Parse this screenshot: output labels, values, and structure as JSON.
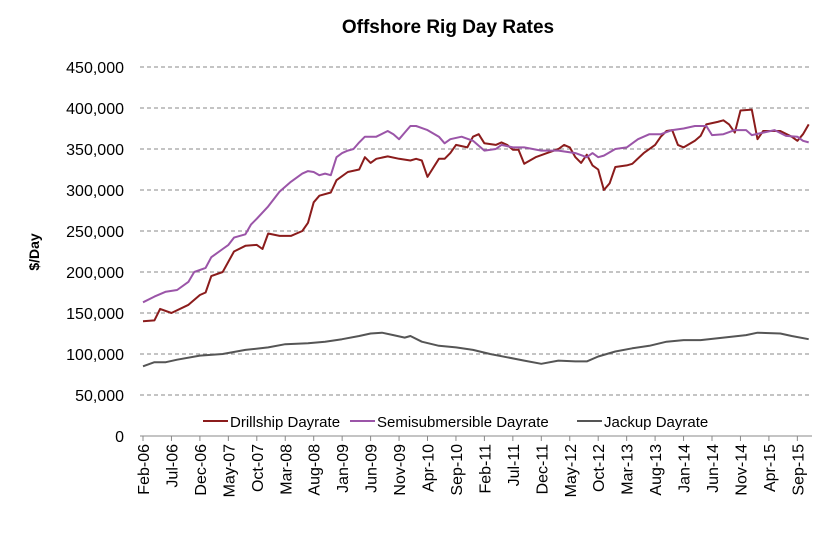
{
  "chart_data": {
    "type": "line",
    "title": "Offshore Rig Day Rates",
    "xlabel": "",
    "ylabel": "$/Day",
    "ylim": [
      0,
      450000
    ],
    "yticks": [
      0,
      50000,
      100000,
      150000,
      200000,
      250000,
      300000,
      350000,
      400000,
      450000
    ],
    "ytick_labels": [
      "0",
      "50,000",
      "100,000",
      "150,000",
      "200,000",
      "250,000",
      "300,000",
      "350,000",
      "400,000",
      "450,000"
    ],
    "x_range": [
      "Feb-06",
      "Nov-15"
    ],
    "xtick_labels": [
      "Feb-06",
      "Jul-06",
      "Dec-06",
      "May-07",
      "Oct-07",
      "Mar-08",
      "Aug-08",
      "Jan-09",
      "Jun-09",
      "Nov-09",
      "Apr-10",
      "Sep-10",
      "Feb-11",
      "Jul-11",
      "Dec-11",
      "May-12",
      "Oct-12",
      "Mar-13",
      "Aug-13",
      "Jan-14",
      "Jun-14",
      "Nov-14",
      "Apr-15",
      "Sep-15"
    ],
    "grid": "horizontal dashed",
    "legend_position": "bottom-inside",
    "series": [
      {
        "name": "Drillship Dayrate",
        "color": "#8b1c1c",
        "points": [
          [
            "Feb-06",
            140000
          ],
          [
            "Apr-06",
            141000
          ],
          [
            "May-06",
            155000
          ],
          [
            "Jul-06",
            150000
          ],
          [
            "Oct-06",
            160000
          ],
          [
            "Dec-06",
            172000
          ],
          [
            "Jan-07",
            175000
          ],
          [
            "Feb-07",
            195000
          ],
          [
            "Apr-07",
            200000
          ],
          [
            "Jun-07",
            225000
          ],
          [
            "Aug-07",
            232000
          ],
          [
            "Oct-07",
            233000
          ],
          [
            "Nov-07",
            228000
          ],
          [
            "Dec-07",
            247000
          ],
          [
            "Feb-08",
            244000
          ],
          [
            "Apr-08",
            244000
          ],
          [
            "Jun-08",
            250000
          ],
          [
            "Jul-08",
            260000
          ],
          [
            "Aug-08",
            285000
          ],
          [
            "Sep-08",
            293000
          ],
          [
            "Nov-08",
            297000
          ],
          [
            "Dec-08",
            312000
          ],
          [
            "Feb-09",
            322000
          ],
          [
            "Apr-09",
            325000
          ],
          [
            "May-09",
            340000
          ],
          [
            "Jun-09",
            333000
          ],
          [
            "Jul-09",
            338000
          ],
          [
            "Sep-09",
            341000
          ],
          [
            "Nov-09",
            338000
          ],
          [
            "Jan-10",
            336000
          ],
          [
            "Feb-10",
            338000
          ],
          [
            "Mar-10",
            336000
          ],
          [
            "Apr-10",
            316000
          ],
          [
            "Jun-10",
            338000
          ],
          [
            "Jul-10",
            338000
          ],
          [
            "Aug-10",
            345000
          ],
          [
            "Sep-10",
            355000
          ],
          [
            "Nov-10",
            352000
          ],
          [
            "Dec-10",
            365000
          ],
          [
            "Jan-11",
            368000
          ],
          [
            "Feb-11",
            357000
          ],
          [
            "Apr-11",
            355000
          ],
          [
            "May-11",
            358000
          ],
          [
            "Jun-11",
            355000
          ],
          [
            "Jul-11",
            349000
          ],
          [
            "Aug-11",
            349000
          ],
          [
            "Sep-11",
            332000
          ],
          [
            "Nov-11",
            340000
          ],
          [
            "Jan-12",
            345000
          ],
          [
            "Mar-12",
            350000
          ],
          [
            "Apr-12",
            355000
          ],
          [
            "May-12",
            352000
          ],
          [
            "Jun-12",
            340000
          ],
          [
            "Jul-12",
            333000
          ],
          [
            "Aug-12",
            343000
          ],
          [
            "Sep-12",
            330000
          ],
          [
            "Oct-12",
            325000
          ],
          [
            "Nov-12",
            300000
          ],
          [
            "Dec-12",
            308000
          ],
          [
            "Jan-13",
            328000
          ],
          [
            "Mar-13",
            330000
          ],
          [
            "Apr-13",
            332000
          ],
          [
            "Jun-13",
            345000
          ],
          [
            "Aug-13",
            355000
          ],
          [
            "Sep-13",
            365000
          ],
          [
            "Oct-13",
            372000
          ],
          [
            "Nov-13",
            373000
          ],
          [
            "Dec-13",
            355000
          ],
          [
            "Jan-14",
            352000
          ],
          [
            "Mar-14",
            360000
          ],
          [
            "Apr-14",
            366000
          ],
          [
            "May-14",
            380000
          ],
          [
            "Jul-14",
            383000
          ],
          [
            "Aug-14",
            385000
          ],
          [
            "Sep-14",
            380000
          ],
          [
            "Oct-14",
            370000
          ],
          [
            "Nov-14",
            397000
          ],
          [
            "Jan-15",
            398000
          ],
          [
            "Feb-15",
            362000
          ],
          [
            "Mar-15",
            372000
          ],
          [
            "Jun-15",
            372000
          ],
          [
            "Aug-15",
            365000
          ],
          [
            "Sep-15",
            360000
          ],
          [
            "Oct-15",
            368000
          ],
          [
            "Nov-15",
            380000
          ]
        ]
      },
      {
        "name": "Semisubmersible Dayrate",
        "color": "#9b55a8",
        "points": [
          [
            "Feb-06",
            163000
          ],
          [
            "Apr-06",
            170000
          ],
          [
            "Jun-06",
            176000
          ],
          [
            "Aug-06",
            178000
          ],
          [
            "Oct-06",
            188000
          ],
          [
            "Nov-06",
            200000
          ],
          [
            "Jan-07",
            205000
          ],
          [
            "Feb-07",
            218000
          ],
          [
            "Apr-07",
            228000
          ],
          [
            "May-07",
            233000
          ],
          [
            "Jun-07",
            242000
          ],
          [
            "Aug-07",
            246000
          ],
          [
            "Sep-07",
            258000
          ],
          [
            "Oct-07",
            265000
          ],
          [
            "Dec-07",
            280000
          ],
          [
            "Feb-08",
            298000
          ],
          [
            "Apr-08",
            310000
          ],
          [
            "Jun-08",
            320000
          ],
          [
            "Jul-08",
            323000
          ],
          [
            "Aug-08",
            322000
          ],
          [
            "Sep-08",
            318000
          ],
          [
            "Oct-08",
            320000
          ],
          [
            "Nov-08",
            318000
          ],
          [
            "Dec-08",
            340000
          ],
          [
            "Jan-09",
            345000
          ],
          [
            "Feb-09",
            348000
          ],
          [
            "Mar-09",
            350000
          ],
          [
            "Apr-09",
            358000
          ],
          [
            "May-09",
            365000
          ],
          [
            "Jul-09",
            365000
          ],
          [
            "Sep-09",
            372000
          ],
          [
            "Oct-09",
            368000
          ],
          [
            "Nov-09",
            362000
          ],
          [
            "Dec-09",
            370000
          ],
          [
            "Jan-10",
            378000
          ],
          [
            "Feb-10",
            378000
          ],
          [
            "Apr-10",
            373000
          ],
          [
            "Jun-10",
            365000
          ],
          [
            "Jul-10",
            357000
          ],
          [
            "Aug-10",
            362000
          ],
          [
            "Oct-10",
            365000
          ],
          [
            "Dec-10",
            360000
          ],
          [
            "Feb-11",
            348000
          ],
          [
            "Apr-11",
            350000
          ],
          [
            "May-11",
            355000
          ],
          [
            "Jul-11",
            352000
          ],
          [
            "Sep-11",
            352000
          ],
          [
            "Dec-11",
            348000
          ],
          [
            "Mar-12",
            348000
          ],
          [
            "Jun-12",
            345000
          ],
          [
            "Aug-12",
            340000
          ],
          [
            "Sep-12",
            345000
          ],
          [
            "Oct-12",
            340000
          ],
          [
            "Nov-12",
            342000
          ],
          [
            "Jan-13",
            350000
          ],
          [
            "Mar-13",
            352000
          ],
          [
            "May-13",
            362000
          ],
          [
            "Jul-13",
            368000
          ],
          [
            "Sep-13",
            368000
          ],
          [
            "Nov-13",
            373000
          ],
          [
            "Jan-14",
            375000
          ],
          [
            "Mar-14",
            378000
          ],
          [
            "May-14",
            378000
          ],
          [
            "Jun-14",
            367000
          ],
          [
            "Aug-14",
            368000
          ],
          [
            "Oct-14",
            373000
          ],
          [
            "Dec-14",
            373000
          ],
          [
            "Jan-15",
            367000
          ],
          [
            "Mar-15",
            370000
          ],
          [
            "May-15",
            373000
          ],
          [
            "Jul-15",
            366000
          ],
          [
            "Sep-15",
            365000
          ],
          [
            "Oct-15",
            360000
          ],
          [
            "Nov-15",
            358000
          ]
        ]
      },
      {
        "name": "Jackup Dayrate",
        "color": "#555555",
        "points": [
          [
            "Feb-06",
            85000
          ],
          [
            "Apr-06",
            90000
          ],
          [
            "Jun-06",
            90000
          ],
          [
            "Aug-06",
            93000
          ],
          [
            "Dec-06",
            98000
          ],
          [
            "Apr-07",
            100000
          ],
          [
            "Aug-07",
            105000
          ],
          [
            "Dec-07",
            108000
          ],
          [
            "Mar-08",
            112000
          ],
          [
            "Jul-08",
            113000
          ],
          [
            "Oct-08",
            115000
          ],
          [
            "Jan-09",
            118000
          ],
          [
            "Apr-09",
            122000
          ],
          [
            "Jun-09",
            125000
          ],
          [
            "Aug-09",
            126000
          ],
          [
            "Oct-09",
            123000
          ],
          [
            "Dec-09",
            120000
          ],
          [
            "Jan-10",
            122000
          ],
          [
            "Mar-10",
            115000
          ],
          [
            "Jun-10",
            110000
          ],
          [
            "Sep-10",
            108000
          ],
          [
            "Dec-10",
            105000
          ],
          [
            "Mar-11",
            100000
          ],
          [
            "Jun-11",
            96000
          ],
          [
            "Sep-11",
            92000
          ],
          [
            "Dec-11",
            88000
          ],
          [
            "Mar-12",
            92000
          ],
          [
            "Jun-12",
            91000
          ],
          [
            "Aug-12",
            91000
          ],
          [
            "Oct-12",
            97000
          ],
          [
            "Jan-13",
            103000
          ],
          [
            "Apr-13",
            107000
          ],
          [
            "Jul-13",
            110000
          ],
          [
            "Oct-13",
            115000
          ],
          [
            "Jan-14",
            117000
          ],
          [
            "Apr-14",
            117000
          ],
          [
            "Aug-14",
            120000
          ],
          [
            "Dec-14",
            123000
          ],
          [
            "Feb-15",
            126000
          ],
          [
            "Jun-15",
            125000
          ],
          [
            "Aug-15",
            122000
          ],
          [
            "Nov-15",
            118000
          ]
        ]
      }
    ]
  }
}
